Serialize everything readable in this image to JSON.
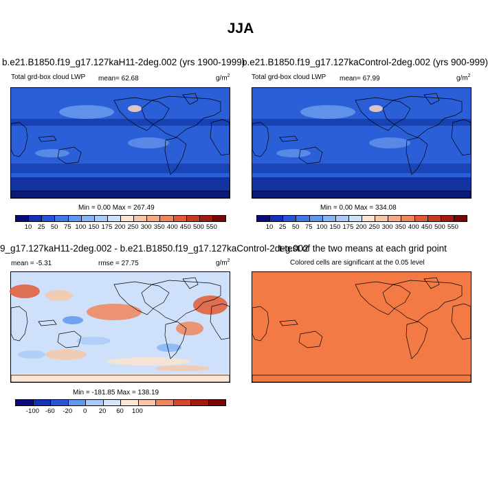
{
  "title": "JJA",
  "panels": {
    "p1": {
      "title": "b.e21.B1850.f19_g17.127kaH11-2deg.002 (yrs 1900-1999)",
      "variable": "Total grd-box cloud LWP",
      "mean": "mean=  62.68",
      "units": "g/m",
      "units_sup": "2",
      "minmax": "Min =   0.00 Max = 267.49"
    },
    "p2": {
      "title": "b.e21.B1850.f19_g17.127kaControl-2deg.002 (yrs 900-999)",
      "variable": "Total grd-box cloud LWP",
      "mean": "mean=  67.99",
      "units": "g/m",
      "units_sup": "2",
      "minmax": "Min =   0.00 Max = 334.08"
    },
    "p3": {
      "title": "9_g17.127kaH11-2deg.002 - b.e21.B1850.f19_g17.127kaControl-2deg.002",
      "mean": "mean = -5.31",
      "rmse": "rmse =  27.75",
      "units": "g/m",
      "units_sup": "2",
      "minmax": "Min = -181.85 Max = 138.19"
    },
    "p4": {
      "title": "t-test of the two means at each grid point",
      "subtitle": "Colored cells are significant at the 0.05 level"
    }
  },
  "colorbar_abs": {
    "labels": [
      "10",
      "25",
      "50",
      "75",
      "100",
      "150",
      "175",
      "200",
      "250",
      "300",
      "350",
      "400",
      "450",
      "500",
      "550"
    ],
    "colors": [
      "#0a0a7a",
      "#1530b8",
      "#2855d8",
      "#3f7ae8",
      "#5e98f0",
      "#86b4f5",
      "#aacbf8",
      "#cfe0fa",
      "#fbe3cf",
      "#f8c7a8",
      "#f5a882",
      "#f0855a",
      "#e25a35",
      "#c63a1e",
      "#a31a0e",
      "#7a0606"
    ]
  },
  "colorbar_diff": {
    "labels": [
      "-100",
      "-60",
      "-20",
      "0",
      "20",
      "60",
      "100"
    ],
    "colors": [
      "#0a0a7a",
      "#1530b8",
      "#2855d8",
      "#5e98f0",
      "#aacbf8",
      "#d6e6fb",
      "#fde8d8",
      "#f8c7a8",
      "#f0855a",
      "#d9462a",
      "#a31a0e",
      "#7a0606"
    ]
  },
  "colors": {
    "abs_base": "#2a5fd8",
    "abs_dark": "#143aa8",
    "abs_light": "#86b4f5",
    "diff_base": "#cfe0fa",
    "ttest": "#f47a45"
  }
}
